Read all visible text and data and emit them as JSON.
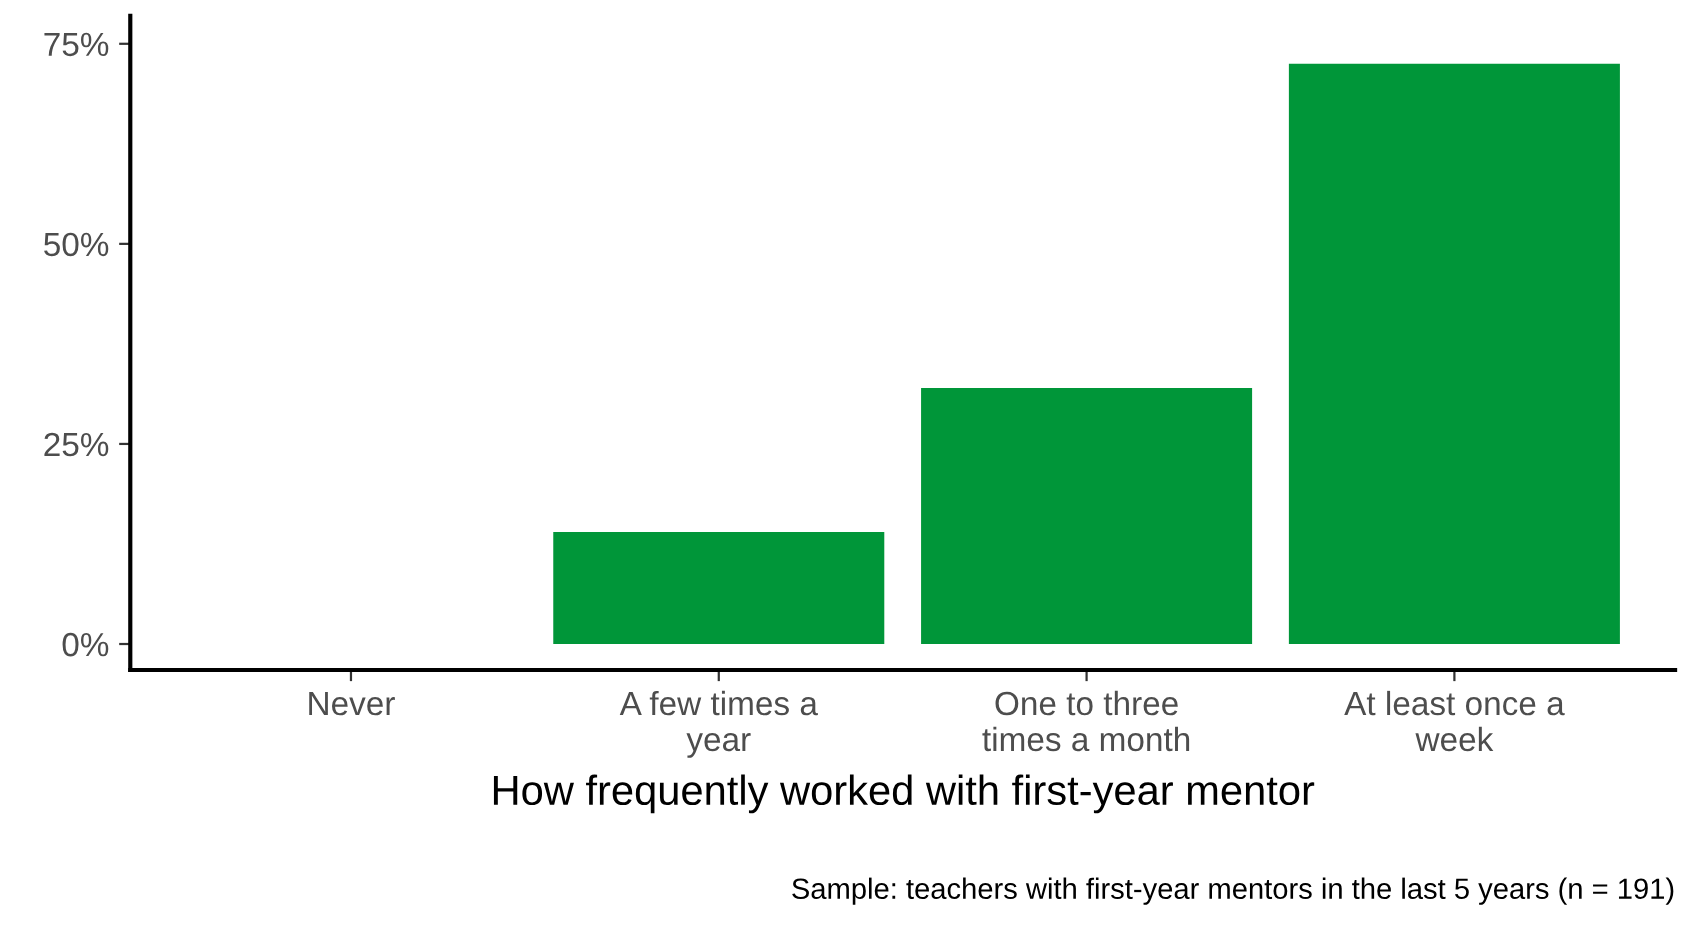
{
  "chart_data": {
    "type": "bar",
    "categories": [
      "Never",
      "A few times a\nyear",
      "One to three\ntimes a month",
      "At least once a\nweek"
    ],
    "values": [
      0,
      14,
      32,
      72.5
    ],
    "color": "#009639",
    "xlabel": "How frequently worked with first-year mentor",
    "annotations": [
      "Sample: teachers with first-year mentors in the last 5 years (n = 191)"
    ],
    "ylim": [
      -3.25,
      78.5
    ],
    "yticks": [
      {
        "value": 0,
        "label": "0%"
      },
      {
        "value": 25,
        "label": "25%"
      },
      {
        "value": 50,
        "label": "50%"
      },
      {
        "value": 75,
        "label": "75%"
      }
    ],
    "grid": false,
    "legend": false
  }
}
